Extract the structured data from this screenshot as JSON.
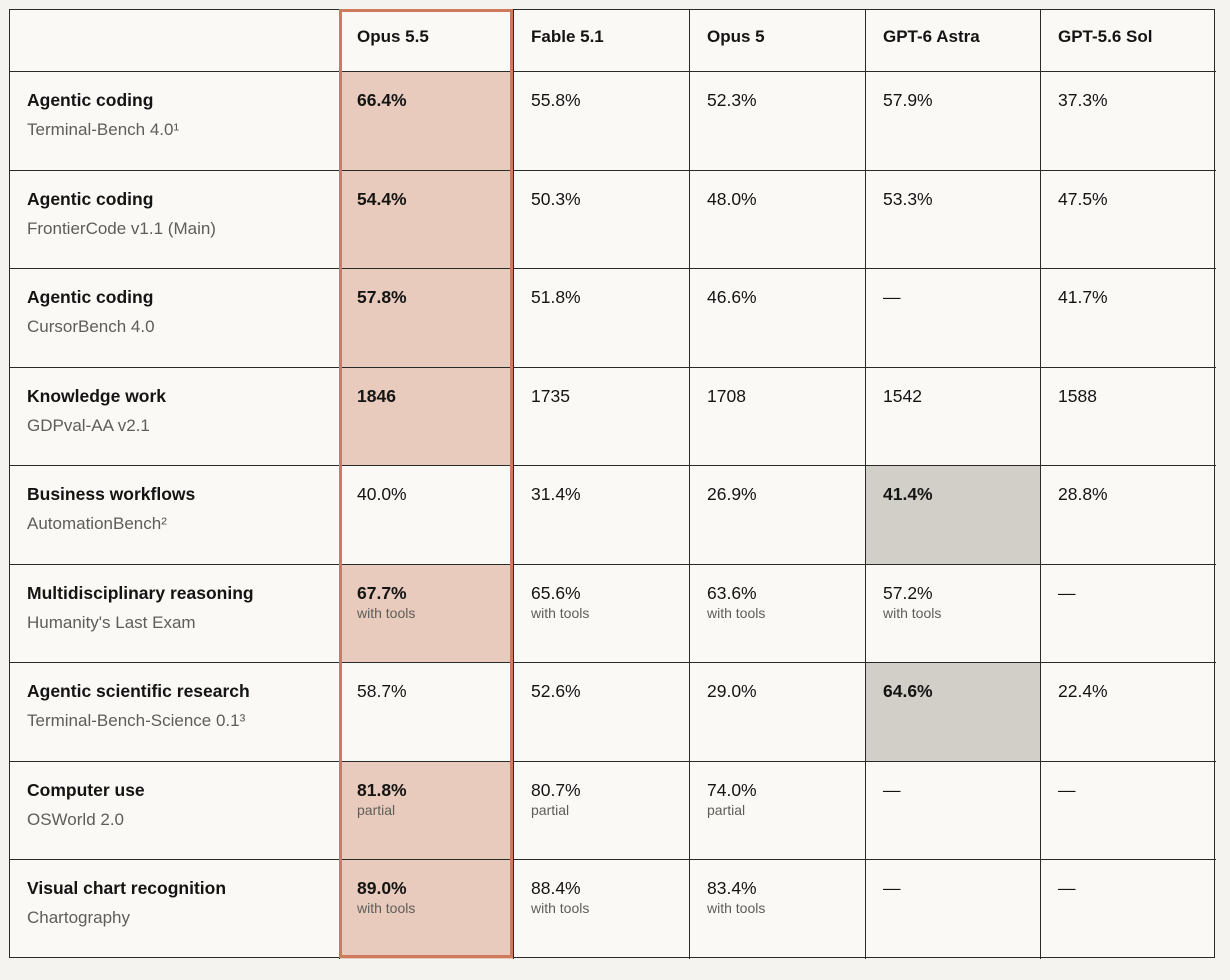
{
  "columns": [
    "",
    "Opus 5.5",
    "Fable 5.1",
    "Opus 5",
    "GPT-6 Astra",
    "GPT-5.6 Sol"
  ],
  "rows": [
    {
      "category": "Agentic coding",
      "benchmark": "Terminal-Bench 4.0¹",
      "values": [
        {
          "value": "66.4%",
          "note": "",
          "bold": true,
          "highlight": "opus"
        },
        {
          "value": "55.8%",
          "note": ""
        },
        {
          "value": "52.3%",
          "note": ""
        },
        {
          "value": "57.9%",
          "note": ""
        },
        {
          "value": "37.3%",
          "note": ""
        }
      ]
    },
    {
      "category": "Agentic coding",
      "benchmark": "FrontierCode v1.1 (Main)",
      "values": [
        {
          "value": "54.4%",
          "note": "",
          "bold": true,
          "highlight": "opus"
        },
        {
          "value": "50.3%",
          "note": ""
        },
        {
          "value": "48.0%",
          "note": ""
        },
        {
          "value": "53.3%",
          "note": ""
        },
        {
          "value": "47.5%",
          "note": ""
        }
      ]
    },
    {
      "category": "Agentic coding",
      "benchmark": "CursorBench 4.0",
      "values": [
        {
          "value": "57.8%",
          "note": "",
          "bold": true,
          "highlight": "opus"
        },
        {
          "value": "51.8%",
          "note": ""
        },
        {
          "value": "46.6%",
          "note": ""
        },
        {
          "value": "—",
          "note": ""
        },
        {
          "value": "41.7%",
          "note": ""
        }
      ]
    },
    {
      "category": "Knowledge work",
      "benchmark": "GDPval-AA v2.1",
      "values": [
        {
          "value": "1846",
          "note": "",
          "bold": true,
          "highlight": "opus"
        },
        {
          "value": "1735",
          "note": ""
        },
        {
          "value": "1708",
          "note": ""
        },
        {
          "value": "1542",
          "note": ""
        },
        {
          "value": "1588",
          "note": ""
        }
      ]
    },
    {
      "category": "Business workflows",
      "benchmark": "AutomationBench²",
      "values": [
        {
          "value": "40.0%",
          "note": ""
        },
        {
          "value": "31.4%",
          "note": ""
        },
        {
          "value": "26.9%",
          "note": ""
        },
        {
          "value": "41.4%",
          "note": "",
          "bold": true,
          "highlight": "gray"
        },
        {
          "value": "28.8%",
          "note": ""
        }
      ]
    },
    {
      "category": "Multidisciplinary reasoning",
      "benchmark": "Humanity's Last Exam",
      "values": [
        {
          "value": "67.7%",
          "note": "with tools",
          "bold": true,
          "highlight": "opus"
        },
        {
          "value": "65.6%",
          "note": "with tools"
        },
        {
          "value": "63.6%",
          "note": "with tools"
        },
        {
          "value": "57.2%",
          "note": "with tools"
        },
        {
          "value": "—",
          "note": ""
        }
      ]
    },
    {
      "category": "Agentic scientific research",
      "benchmark": "Terminal-Bench-Science 0.1³",
      "values": [
        {
          "value": "58.7%",
          "note": ""
        },
        {
          "value": "52.6%",
          "note": ""
        },
        {
          "value": "29.0%",
          "note": ""
        },
        {
          "value": "64.6%",
          "note": "",
          "bold": true,
          "highlight": "gray"
        },
        {
          "value": "22.4%",
          "note": ""
        }
      ]
    },
    {
      "category": "Computer use",
      "benchmark": "OSWorld 2.0",
      "values": [
        {
          "value": "81.8%",
          "note": "partial",
          "bold": true,
          "highlight": "opus"
        },
        {
          "value": "80.7%",
          "note": "partial"
        },
        {
          "value": "74.0%",
          "note": "partial"
        },
        {
          "value": "—",
          "note": ""
        },
        {
          "value": "—",
          "note": ""
        }
      ]
    },
    {
      "category": "Visual chart recognition",
      "benchmark": "Chartography",
      "values": [
        {
          "value": "89.0%",
          "note": "with tools",
          "bold": true,
          "highlight": "opus"
        },
        {
          "value": "88.4%",
          "note": "with tools"
        },
        {
          "value": "83.4%",
          "note": "with tools"
        },
        {
          "value": "—",
          "note": ""
        },
        {
          "value": "—",
          "note": ""
        }
      ]
    }
  ],
  "colors": {
    "opus_highlight": "#e8cbbc",
    "opus_frame": "#d07a5d",
    "gray_highlight": "#d2cfc8",
    "background": "#f5f3ef"
  }
}
